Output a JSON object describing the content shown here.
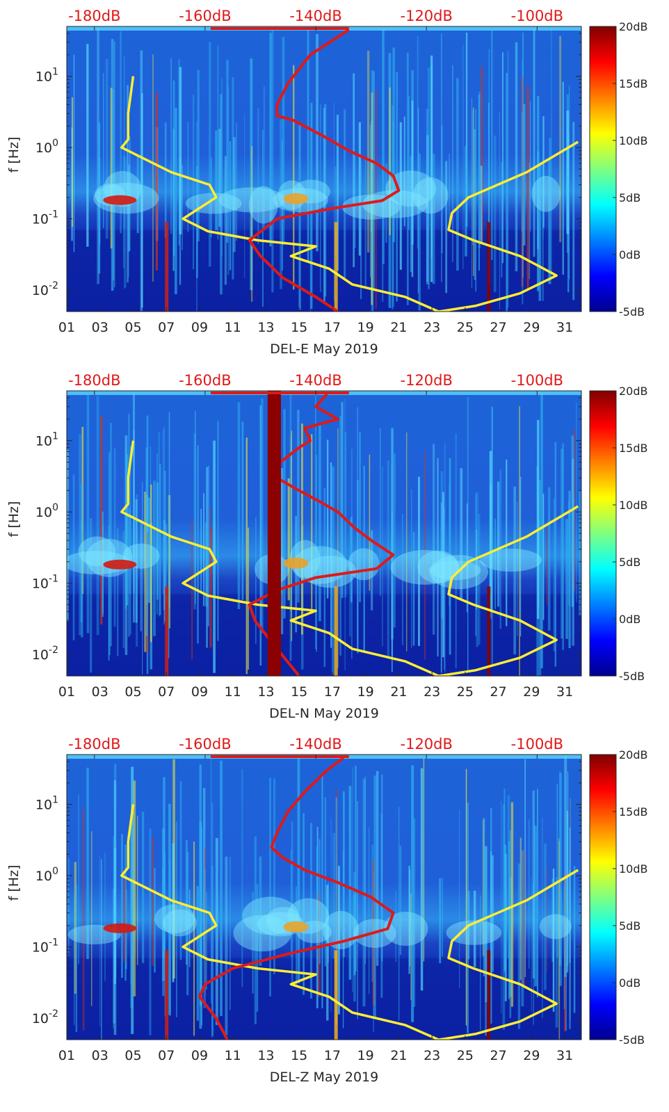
{
  "chart_data": [
    {
      "type": "heatmap",
      "title": "",
      "xlabel": "DEL-E May 2019",
      "ylabel": "f [Hz]",
      "x_ticks": [
        "01",
        "03",
        "05",
        "07",
        "09",
        "11",
        "13",
        "15",
        "17",
        "19",
        "21",
        "23",
        "25",
        "27",
        "29",
        "31"
      ],
      "x_range": [
        1,
        32
      ],
      "y_scale": "log",
      "y_range": [
        0.005,
        50
      ],
      "y_ticks": [
        "10^{-2}",
        "10^{-1}",
        "10^{0}",
        "10^{1}"
      ],
      "top_ticks": [
        "-180dB",
        "-160dB",
        "-140dB",
        "-120dB",
        "-100dB"
      ],
      "top_axis_range": [
        -185,
        -92
      ],
      "colorbar": {
        "ticks": [
          "20dB",
          "15dB",
          "10dB",
          "5dB",
          "0dB",
          "-5dB"
        ],
        "range": [
          -5,
          20
        ],
        "colormap": "jet"
      },
      "series": [
        {
          "color": "#ffee33",
          "x": [
            5.0,
            4.7,
            4.7,
            4.3,
            7.3,
            9.6,
            10.0,
            8.0,
            9.5,
            12.5,
            16.0,
            14.5,
            16.8,
            18.2,
            21.4,
            23.4,
            25.6,
            28.3,
            30.5,
            28.3,
            25.5,
            24.0,
            24.2,
            25.2,
            28.7,
            31.8
          ],
          "y": [
            10.0,
            3.0,
            1.3,
            1.0,
            0.45,
            0.3,
            0.2,
            0.1,
            0.067,
            0.05,
            0.041,
            0.03,
            0.02,
            0.012,
            0.008,
            0.005,
            0.006,
            0.009,
            0.016,
            0.03,
            0.05,
            0.07,
            0.12,
            0.2,
            0.45,
            1.2
          ]
        },
        {
          "color": "#dd1a1a",
          "x": [
            -134,
            -141,
            -145,
            -147,
            -147,
            -144,
            -139,
            -134,
            -129,
            -126,
            -125,
            -128,
            -137,
            -147,
            -152,
            -150,
            -146,
            -140,
            -136
          ],
          "y": [
            45,
            20,
            8,
            4,
            2.8,
            2.4,
            1.5,
            0.9,
            0.6,
            0.4,
            0.25,
            0.18,
            0.14,
            0.1,
            0.05,
            0.03,
            0.015,
            0.008,
            0.005
          ]
        }
      ]
    },
    {
      "type": "heatmap",
      "title": "",
      "xlabel": "DEL-N May 2019",
      "ylabel": "f [Hz]",
      "x_ticks": [
        "01",
        "03",
        "05",
        "07",
        "09",
        "11",
        "13",
        "15",
        "17",
        "19",
        "21",
        "23",
        "25",
        "27",
        "29",
        "31"
      ],
      "x_range": [
        1,
        32
      ],
      "y_scale": "log",
      "y_range": [
        0.005,
        50
      ],
      "y_ticks": [
        "10^{-2}",
        "10^{-1}",
        "10^{0}",
        "10^{1}"
      ],
      "top_ticks": [
        "-180dB",
        "-160dB",
        "-140dB",
        "-120dB",
        "-100dB"
      ],
      "top_axis_range": [
        -185,
        -92
      ],
      "colorbar": {
        "ticks": [
          "20dB",
          "15dB",
          "10dB",
          "5dB",
          "0dB",
          "-5dB"
        ],
        "range": [
          -5,
          20
        ],
        "colormap": "jet"
      },
      "series": [
        {
          "color": "#ffee33",
          "x": [
            5.0,
            4.7,
            4.7,
            4.3,
            7.3,
            9.6,
            10.0,
            8.0,
            9.5,
            12.5,
            16.0,
            14.5,
            16.8,
            18.2,
            21.4,
            23.4,
            25.6,
            28.3,
            30.5,
            28.3,
            25.5,
            24.0,
            24.2,
            25.2,
            28.7,
            31.8
          ],
          "y": [
            10.0,
            3.0,
            1.3,
            1.0,
            0.45,
            0.3,
            0.2,
            0.1,
            0.067,
            0.05,
            0.041,
            0.03,
            0.02,
            0.012,
            0.008,
            0.005,
            0.006,
            0.009,
            0.016,
            0.03,
            0.05,
            0.07,
            0.12,
            0.2,
            0.45,
            1.2
          ]
        },
        {
          "color": "#dd1a1a",
          "x": [
            -138,
            -140,
            -136,
            -142,
            -141,
            -143,
            -148,
            -147,
            -144,
            -140,
            -136,
            -133,
            -130,
            -126,
            -129,
            -140,
            -147,
            -152,
            -151,
            -148,
            -143
          ],
          "y": [
            45,
            30,
            20,
            15,
            10,
            8,
            4,
            3,
            2.2,
            1.5,
            1.0,
            0.6,
            0.4,
            0.25,
            0.16,
            0.12,
            0.08,
            0.05,
            0.03,
            0.015,
            0.005
          ]
        },
        {
          "color": "#8b0000",
          "name": "",
          "x": [
            13.1,
            13.9
          ],
          "y": [
            0.005,
            50
          ]
        }
      ]
    },
    {
      "type": "heatmap",
      "title": "",
      "xlabel": "DEL-Z May 2019",
      "ylabel": "f [Hz]",
      "x_ticks": [
        "01",
        "03",
        "05",
        "07",
        "09",
        "11",
        "13",
        "15",
        "17",
        "19",
        "21",
        "23",
        "25",
        "27",
        "29",
        "31"
      ],
      "x_range": [
        1,
        32
      ],
      "y_scale": "log",
      "y_range": [
        0.005,
        50
      ],
      "y_ticks": [
        "10^{-2}",
        "10^{-1}",
        "10^{0}",
        "10^{1}"
      ],
      "top_ticks": [
        "-180dB",
        "-160dB",
        "-140dB",
        "-120dB",
        "-100dB"
      ],
      "top_axis_range": [
        -185,
        -92
      ],
      "colorbar": {
        "ticks": [
          "20dB",
          "15dB",
          "10dB",
          "5dB",
          "0dB",
          "-5dB"
        ],
        "range": [
          -5,
          20
        ],
        "colormap": "jet"
      },
      "series": [
        {
          "color": "#ffee33",
          "x": [
            5.0,
            4.7,
            4.7,
            4.3,
            7.3,
            9.6,
            10.0,
            8.0,
            9.5,
            12.5,
            16.0,
            14.5,
            16.8,
            18.2,
            21.4,
            23.4,
            25.6,
            28.3,
            30.5,
            28.3,
            25.5,
            24.0,
            24.2,
            25.2,
            28.7,
            31.8
          ],
          "y": [
            10.0,
            3.0,
            1.3,
            1.0,
            0.45,
            0.3,
            0.2,
            0.1,
            0.067,
            0.05,
            0.041,
            0.03,
            0.02,
            0.012,
            0.008,
            0.005,
            0.006,
            0.009,
            0.016,
            0.03,
            0.05,
            0.07,
            0.12,
            0.2,
            0.45,
            1.2
          ]
        },
        {
          "color": "#dd1a1a",
          "x": [
            -135,
            -138,
            -142,
            -145,
            -147,
            -148,
            -146,
            -142,
            -136,
            -130,
            -126,
            -127,
            -135,
            -145,
            -155,
            -160,
            -161,
            -158,
            -156
          ],
          "y": [
            45,
            30,
            15,
            8,
            4,
            2.5,
            1.8,
            1.2,
            0.8,
            0.5,
            0.3,
            0.18,
            0.12,
            0.08,
            0.05,
            0.03,
            0.02,
            0.01,
            0.005
          ]
        }
      ]
    }
  ]
}
